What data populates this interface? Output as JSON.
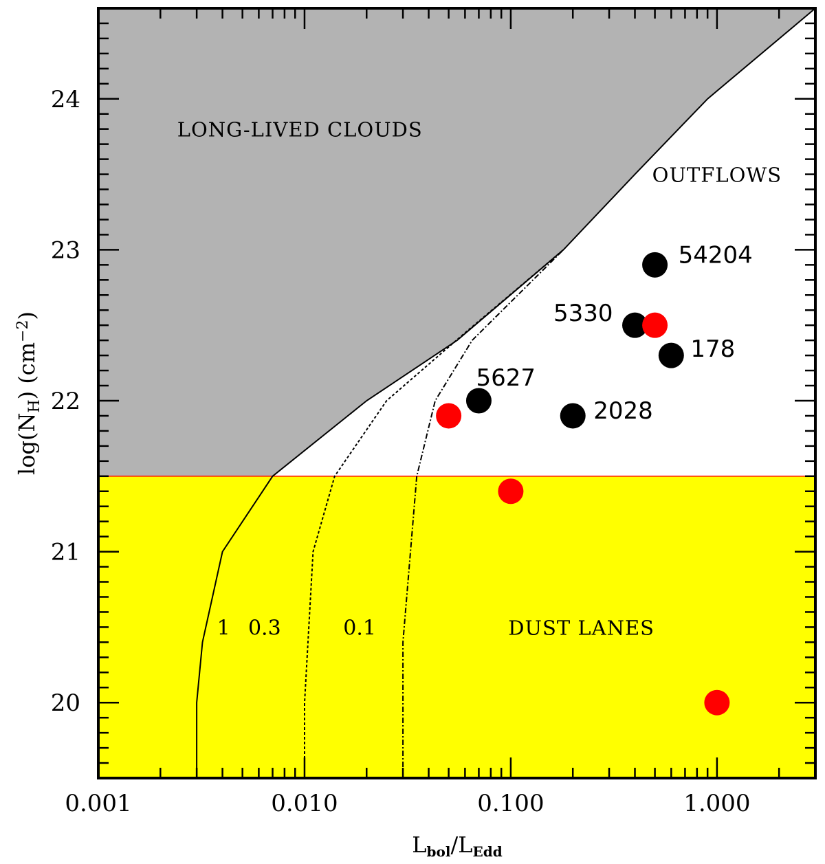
{
  "chart_data": {
    "type": "scatter",
    "xscale": "log",
    "xlim": [
      0.001,
      3.0
    ],
    "ylim": [
      19.5,
      24.6
    ],
    "xlabel": "L_bol/L_Edd",
    "ylabel": "log(N_H) (cm^-2)",
    "xlabel_parts": {
      "main1": "L",
      "sub1": "bol",
      "sep": "/",
      "main2": "L",
      "sub2": "Edd"
    },
    "ylabel_parts": {
      "pre": "log(N",
      "sub": "H",
      "mid": ")  (cm",
      "sup": "−2",
      "post": ")"
    },
    "xticks": [
      {
        "value": 0.001,
        "label": "0.001"
      },
      {
        "value": 0.01,
        "label": "0.010"
      },
      {
        "value": 0.1,
        "label": "0.100"
      },
      {
        "value": 1.0,
        "label": "1.000"
      }
    ],
    "yticks": [
      {
        "value": 20,
        "label": "20"
      },
      {
        "value": 21,
        "label": "21"
      },
      {
        "value": 22,
        "label": "22"
      },
      {
        "value": 23,
        "label": "23"
      },
      {
        "value": 24,
        "label": "24"
      }
    ],
    "regions": [
      {
        "name": "LONG-LIVED CLOUDS",
        "color": "#b3b3b3"
      },
      {
        "name": "OUTFLOWS",
        "color": "#ffffff"
      },
      {
        "name": "DUST LANES",
        "color": "#ffff00",
        "y_max": 21.5
      }
    ],
    "curves": [
      {
        "label": "1",
        "style": "solid",
        "points": [
          [
            0.003,
            19.5
          ],
          [
            0.003,
            20.0
          ],
          [
            0.0032,
            20.4
          ],
          [
            0.004,
            21.0
          ],
          [
            0.007,
            21.5
          ],
          [
            0.02,
            22.0
          ],
          [
            0.055,
            22.4
          ],
          [
            0.18,
            23.0
          ],
          [
            0.4,
            23.5
          ],
          [
            0.9,
            24.0
          ],
          [
            3.0,
            24.6
          ]
        ]
      },
      {
        "label": "0.3",
        "style": "dashed",
        "points": [
          [
            0.01,
            19.5
          ],
          [
            0.01,
            20.0
          ],
          [
            0.011,
            21.0
          ],
          [
            0.014,
            21.5
          ],
          [
            0.025,
            22.0
          ],
          [
            0.06,
            22.45
          ],
          [
            0.18,
            23.0
          ]
        ]
      },
      {
        "label": "0.1",
        "style": "dashdot",
        "points": [
          [
            0.03,
            19.5
          ],
          [
            0.03,
            20.4
          ],
          [
            0.035,
            21.5
          ],
          [
            0.043,
            22.0
          ],
          [
            0.065,
            22.4
          ],
          [
            0.18,
            23.0
          ]
        ]
      }
    ],
    "series": [
      {
        "color": "#000000",
        "points": [
          {
            "x": 0.5,
            "y": 22.9,
            "label": "54204"
          },
          {
            "x": 0.4,
            "y": 22.5,
            "label": "5330"
          },
          {
            "x": 0.6,
            "y": 22.3,
            "label": "178"
          },
          {
            "x": 0.07,
            "y": 22.0,
            "label": "5627"
          },
          {
            "x": 0.2,
            "y": 21.9,
            "label": "2028"
          }
        ]
      },
      {
        "color": "#ff0000",
        "points": [
          {
            "x": 0.5,
            "y": 22.5
          },
          {
            "x": 0.05,
            "y": 21.9
          },
          {
            "x": 0.1,
            "y": 21.4
          },
          {
            "x": 1.0,
            "y": 20.0
          }
        ]
      }
    ]
  }
}
